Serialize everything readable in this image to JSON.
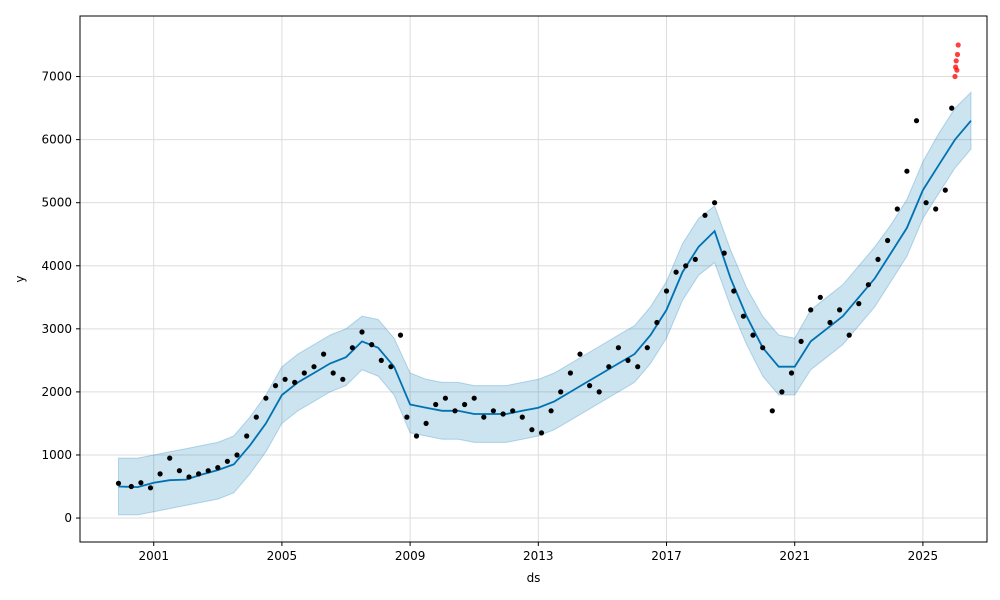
{
  "chart_data": {
    "type": "line",
    "xlabel": "ds",
    "ylabel": "y",
    "xlim": [
      1998.7,
      2027.0
    ],
    "ylim": [
      -380,
      7960
    ],
    "grid": true,
    "x_ticks": [
      2001,
      2005,
      2009,
      2013,
      2017,
      2021,
      2025
    ],
    "x_tick_labels": [
      "2001",
      "2005",
      "2009",
      "2013",
      "2017",
      "2021",
      "2025"
    ],
    "y_ticks": [
      0,
      1000,
      2000,
      3000,
      4000,
      5000,
      6000,
      7000
    ],
    "y_tick_labels": [
      "0",
      "1000",
      "2000",
      "3000",
      "4000",
      "5000",
      "6000",
      "7000"
    ],
    "colors": {
      "observed": "#000000",
      "forecast": "#0072B2",
      "interval": "#0072B2",
      "outliers": "#ff0000"
    },
    "series": [
      {
        "kind": "observed",
        "x": [
          1999.9,
          2000.3,
          2000.6,
          2000.9,
          2001.2,
          2001.5,
          2001.8,
          2002.1,
          2002.4,
          2002.7,
          2003.0,
          2003.3,
          2003.6,
          2003.9,
          2004.2,
          2004.5,
          2004.8,
          2005.1,
          2005.4,
          2005.7,
          2006.0,
          2006.3,
          2006.6,
          2006.9,
          2007.2,
          2007.5,
          2007.8,
          2008.1,
          2008.4,
          2008.7,
          2008.9,
          2009.2,
          2009.5,
          2009.8,
          2010.1,
          2010.4,
          2010.7,
          2011.0,
          2011.3,
          2011.6,
          2011.9,
          2012.2,
          2012.5,
          2012.8,
          2013.1,
          2013.4,
          2013.7,
          2014.0,
          2014.3,
          2014.6,
          2014.9,
          2015.2,
          2015.5,
          2015.8,
          2016.1,
          2016.4,
          2016.7,
          2017.0,
          2017.3,
          2017.6,
          2017.9,
          2018.2,
          2018.5,
          2018.8,
          2019.1,
          2019.4,
          2019.7,
          2020.0,
          2020.3,
          2020.6,
          2020.9,
          2021.2,
          2021.5,
          2021.8,
          2022.1,
          2022.4,
          2022.7,
          2023.0,
          2023.3,
          2023.6,
          2023.9,
          2024.2,
          2024.5,
          2024.8,
          2025.1,
          2025.4,
          2025.7,
          2025.9
        ],
        "y": [
          550,
          500,
          560,
          480,
          700,
          950,
          750,
          650,
          700,
          750,
          800,
          900,
          1000,
          1300,
          1600,
          1900,
          2100,
          2200,
          2150,
          2300,
          2400,
          2600,
          2300,
          2200,
          2700,
          2950,
          2750,
          2500,
          2400,
          2900,
          1600,
          1300,
          1500,
          1800,
          1900,
          1700,
          1800,
          1900,
          1600,
          1700,
          1650,
          1700,
          1600,
          1400,
          1350,
          1700,
          2000,
          2300,
          2600,
          2100,
          2000,
          2400,
          2700,
          2500,
          2400,
          2700,
          3100,
          3600,
          3900,
          4000,
          4100,
          4800,
          5000,
          4200,
          3600,
          3200,
          2900,
          2700,
          1700,
          2000,
          2300,
          2800,
          3300,
          3500,
          3100,
          3300,
          2900,
          3400,
          3700,
          4100,
          4400,
          4900,
          5500,
          6300,
          5000,
          4900,
          5200,
          6500
        ]
      },
      {
        "kind": "outliers",
        "x": [
          2026.0,
          2026.02,
          2026.04,
          2026.06,
          2026.08,
          2026.1
        ],
        "y": [
          7000,
          7150,
          7250,
          7100,
          7350,
          7500
        ]
      },
      {
        "kind": "forecast",
        "x": [
          1999.9,
          2000.5,
          2001.0,
          2001.5,
          2002.0,
          2002.5,
          2003.0,
          2003.5,
          2004.0,
          2004.5,
          2005.0,
          2005.5,
          2006.0,
          2006.5,
          2007.0,
          2007.5,
          2008.0,
          2008.5,
          2009.0,
          2009.5,
          2010.0,
          2010.5,
          2011.0,
          2011.5,
          2012.0,
          2012.5,
          2013.0,
          2013.5,
          2014.0,
          2014.5,
          2015.0,
          2015.5,
          2016.0,
          2016.5,
          2017.0,
          2017.5,
          2018.0,
          2018.5,
          2019.0,
          2019.5,
          2020.0,
          2020.5,
          2021.0,
          2021.5,
          2022.0,
          2022.5,
          2023.0,
          2023.5,
          2024.0,
          2024.5,
          2025.0,
          2025.5,
          2026.0,
          2026.5
        ],
        "y": [
          500,
          490,
          560,
          600,
          610,
          690,
          760,
          850,
          1150,
          1500,
          1950,
          2150,
          2300,
          2450,
          2550,
          2800,
          2700,
          2400,
          1800,
          1750,
          1700,
          1700,
          1650,
          1650,
          1650,
          1700,
          1750,
          1850,
          2000,
          2150,
          2300,
          2450,
          2600,
          2900,
          3300,
          3900,
          4300,
          4550,
          3800,
          3200,
          2700,
          2400,
          2400,
          2800,
          3000,
          3200,
          3500,
          3800,
          4200,
          4600,
          5200,
          5600,
          6000,
          6300
        ]
      },
      {
        "kind": "interval_upper",
        "x": [
          1999.9,
          2000.5,
          2001.0,
          2001.5,
          2002.0,
          2002.5,
          2003.0,
          2003.5,
          2004.0,
          2004.5,
          2005.0,
          2005.5,
          2006.0,
          2006.5,
          2007.0,
          2007.5,
          2008.0,
          2008.5,
          2009.0,
          2009.5,
          2010.0,
          2010.5,
          2011.0,
          2011.5,
          2012.0,
          2012.5,
          2013.0,
          2013.5,
          2014.0,
          2014.5,
          2015.0,
          2015.5,
          2016.0,
          2016.5,
          2017.0,
          2017.5,
          2018.0,
          2018.5,
          2019.0,
          2019.5,
          2020.0,
          2020.5,
          2021.0,
          2021.5,
          2022.0,
          2022.5,
          2023.0,
          2023.5,
          2024.0,
          2024.5,
          2025.0,
          2025.5,
          2026.0,
          2026.5
        ],
        "y": [
          950,
          950,
          1000,
          1050,
          1100,
          1150,
          1200,
          1300,
          1600,
          1950,
          2400,
          2600,
          2750,
          2900,
          3000,
          3200,
          3150,
          2850,
          2300,
          2200,
          2150,
          2150,
          2100,
          2100,
          2100,
          2150,
          2200,
          2300,
          2450,
          2600,
          2750,
          2900,
          3050,
          3350,
          3750,
          4350,
          4750,
          4950,
          4250,
          3650,
          3200,
          2900,
          2850,
          3300,
          3500,
          3700,
          4000,
          4300,
          4650,
          5050,
          5650,
          6100,
          6500,
          6750
        ]
      },
      {
        "kind": "interval_lower",
        "x": [
          1999.9,
          2000.5,
          2001.0,
          2001.5,
          2002.0,
          2002.5,
          2003.0,
          2003.5,
          2004.0,
          2004.5,
          2005.0,
          2005.5,
          2006.0,
          2006.5,
          2007.0,
          2007.5,
          2008.0,
          2008.5,
          2009.0,
          2009.5,
          2010.0,
          2010.5,
          2011.0,
          2011.5,
          2012.0,
          2012.5,
          2013.0,
          2013.5,
          2014.0,
          2014.5,
          2015.0,
          2015.5,
          2016.0,
          2016.5,
          2017.0,
          2017.5,
          2018.0,
          2018.5,
          2019.0,
          2019.5,
          2020.0,
          2020.5,
          2021.0,
          2021.5,
          2022.0,
          2022.5,
          2023.0,
          2023.5,
          2024.0,
          2024.5,
          2025.0,
          2025.5,
          2026.0,
          2026.5
        ],
        "y": [
          50,
          50,
          100,
          150,
          200,
          250,
          300,
          400,
          700,
          1050,
          1500,
          1700,
          1850,
          2000,
          2100,
          2350,
          2250,
          1950,
          1350,
          1300,
          1250,
          1250,
          1200,
          1200,
          1200,
          1250,
          1300,
          1400,
          1550,
          1700,
          1850,
          2000,
          2150,
          2450,
          2850,
          3450,
          3850,
          4050,
          3350,
          2750,
          2250,
          1950,
          1950,
          2350,
          2550,
          2750,
          3050,
          3350,
          3750,
          4150,
          4750,
          5150,
          5550,
          5850
        ]
      }
    ]
  }
}
